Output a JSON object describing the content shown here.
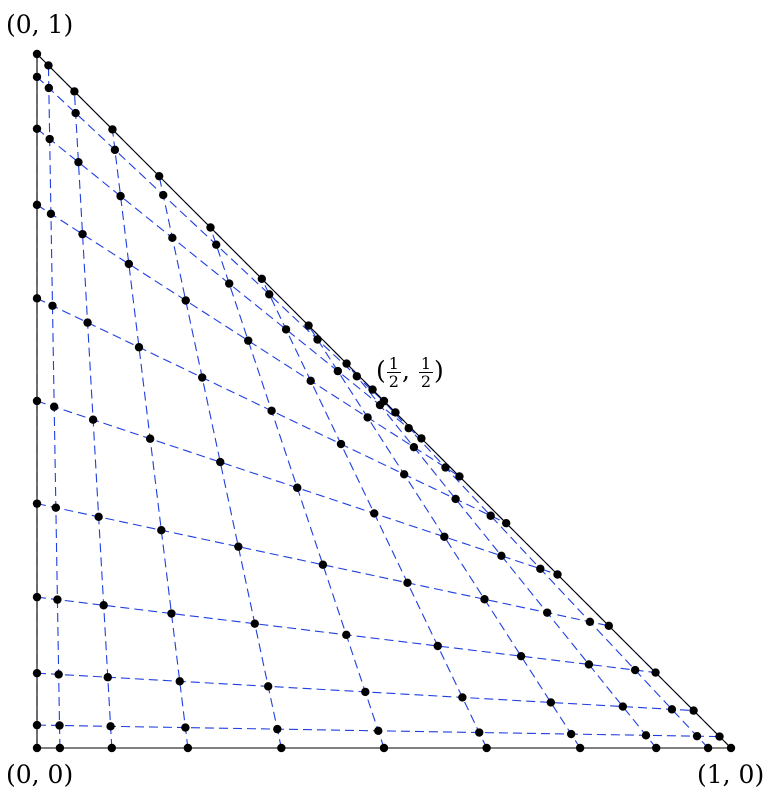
{
  "labels": {
    "top": "(0, 1)",
    "origin": "(0, 0)",
    "right": "(1, 0)",
    "mid_open": "(",
    "mid_num1": "1",
    "mid_den1": "2",
    "mid_sep": ",",
    "mid_num2": "1",
    "mid_den2": "2",
    "mid_close": ")"
  },
  "diagram": {
    "vertices": [
      [
        0,
        0
      ],
      [
        1,
        0
      ],
      [
        0.5,
        0.5
      ],
      [
        0,
        1
      ]
    ],
    "nodes": [
      0,
      0.033,
      0.1078,
      0.2174,
      0.3521,
      0.5,
      0.6479,
      0.7826,
      0.8922,
      0.967,
      1
    ],
    "colors": {
      "grid": "#1f3fe0",
      "boundary": "#000000",
      "points": "#000000"
    }
  }
}
